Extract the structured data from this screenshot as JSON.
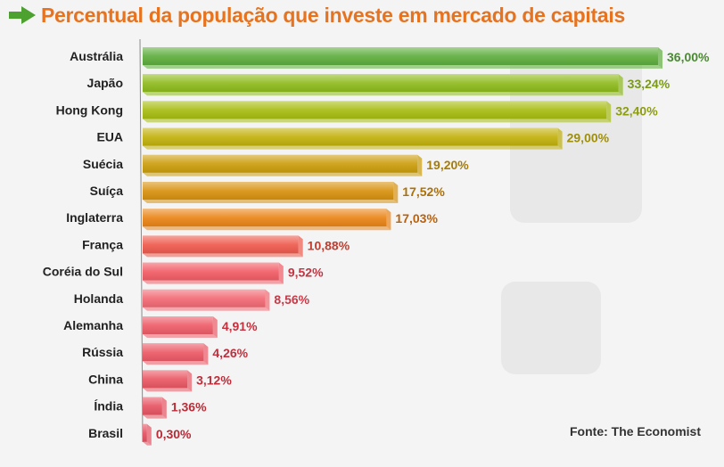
{
  "chart_data": {
    "type": "bar",
    "orientation": "horizontal",
    "title": "Percentual da população que investe em mercado de capitais",
    "categories": [
      "Austrália",
      "Japão",
      "Hong Kong",
      "EUA",
      "Suécia",
      "Suíça",
      "Inglaterra",
      "França",
      "Coréia do Sul",
      "Holanda",
      "Alemanha",
      "Rússia",
      "China",
      "Índia",
      "Brasil"
    ],
    "values": [
      36.0,
      33.24,
      32.4,
      29.0,
      19.2,
      17.52,
      17.03,
      10.88,
      9.52,
      8.56,
      4.91,
      4.26,
      3.12,
      1.36,
      0.3
    ],
    "value_labels": [
      "36,00%",
      "33,24%",
      "32,40%",
      "29,00%",
      "19,20%",
      "17,52%",
      "17,03%",
      "10,88%",
      "9,52%",
      "8,56%",
      "4,91%",
      "4,26%",
      "3,12%",
      "1,36%",
      "0,30%"
    ],
    "bar_colors": [
      "#5fae3e",
      "#8fbb1e",
      "#a8bd12",
      "#c2b10c",
      "#cc9d0c",
      "#d8920f",
      "#ea8517",
      "#ef5b4d",
      "#f25d66",
      "#f26a74",
      "#ee5d68",
      "#ec5a66",
      "#ea5865",
      "#e75463",
      "#e55262"
    ],
    "label_colors": [
      "#4a8a32",
      "#7a9a18",
      "#8e9d10",
      "#9f8f0a",
      "#a57c08",
      "#ab700a",
      "#b6620f",
      "#c23d2f",
      "#c43442",
      "#c83a47",
      "#c2323e",
      "#c0303c",
      "#bd2e3a",
      "#ba2c38",
      "#b82a36"
    ],
    "xlim": [
      0,
      36
    ],
    "grid": false,
    "legend": "none",
    "source": "Fonte: The Economist"
  }
}
